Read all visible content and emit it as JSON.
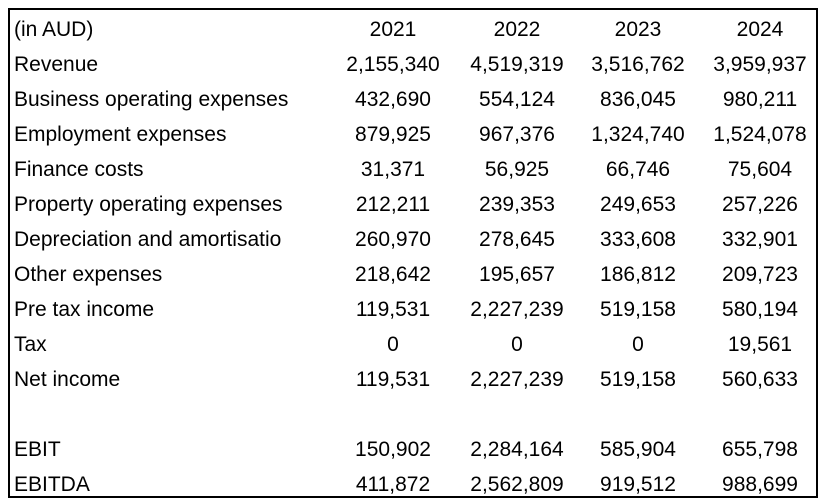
{
  "header": {
    "label": "(in AUD)",
    "years": [
      "2021",
      "2022",
      "2023",
      "2024"
    ]
  },
  "rows": [
    {
      "label": "Revenue",
      "values": [
        "2,155,340",
        "4,519,319",
        "3,516,762",
        "3,959,937"
      ]
    },
    {
      "label": "Business operating expenses",
      "values": [
        "432,690",
        "554,124",
        "836,045",
        "980,211"
      ]
    },
    {
      "label": "Employment expenses",
      "values": [
        "879,925",
        "967,376",
        "1,324,740",
        "1,524,078"
      ]
    },
    {
      "label": "Finance costs",
      "values": [
        "31,371",
        "56,925",
        "66,746",
        "75,604"
      ]
    },
    {
      "label": "Property operating expenses",
      "values": [
        "212,211",
        "239,353",
        "249,653",
        "257,226"
      ]
    },
    {
      "label": "Depreciation and amortisatio",
      "values": [
        "260,970",
        "278,645",
        "333,608",
        "332,901"
      ]
    },
    {
      "label": "Other expenses",
      "values": [
        "218,642",
        "195,657",
        "186,812",
        "209,723"
      ]
    },
    {
      "label": "Pre tax income",
      "values": [
        "119,531",
        "2,227,239",
        "519,158",
        "580,194"
      ]
    },
    {
      "label": "Tax",
      "values": [
        "0",
        "0",
        "0",
        "19,561"
      ]
    },
    {
      "label": "Net income",
      "values": [
        "119,531",
        "2,227,239",
        "519,158",
        "560,633"
      ]
    }
  ],
  "summary": [
    {
      "label": "EBIT",
      "values": [
        "150,902",
        "2,284,164",
        "585,904",
        "655,798"
      ]
    },
    {
      "label": "EBITDA",
      "values": [
        "411,872",
        "2,562,809",
        "919,512",
        "988,699"
      ]
    }
  ]
}
